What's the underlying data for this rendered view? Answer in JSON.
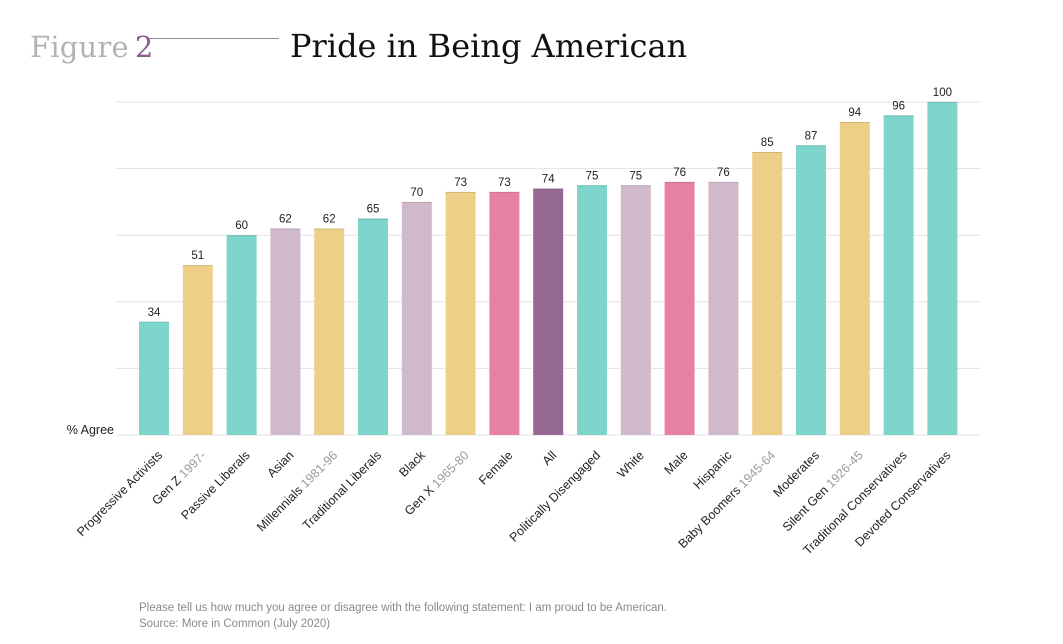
{
  "figure": {
    "label": "Figure",
    "number": "2"
  },
  "title": "Pride in Being American",
  "footnote": {
    "question": "Please tell us how much you agree or disagree with the following statement: I am proud to be American.",
    "source": "Source: More in Common (July 2020)"
  },
  "colors": {
    "teal": "#7dd5cb",
    "gold": "#edcf87",
    "mauve": "#d1b9cc",
    "pink": "#e681a5",
    "purple": "#966994",
    "grid": "#e3e3e3",
    "subtle_text": "#9b9b9b"
  },
  "chart_data": {
    "type": "bar",
    "title": "Pride in Being American",
    "ylabel": "% Agree",
    "xlabel": "",
    "ylim": [
      0,
      100
    ],
    "grid": true,
    "categories": [
      {
        "label": "Progressive Activists",
        "sub": "",
        "value": 34,
        "color": "teal"
      },
      {
        "label": "Gen Z",
        "sub": "1997-",
        "value": 51,
        "color": "gold"
      },
      {
        "label": "Passive Liberals",
        "sub": "",
        "value": 60,
        "color": "teal"
      },
      {
        "label": "Asian",
        "sub": "",
        "value": 62,
        "color": "mauve"
      },
      {
        "label": "Millennials",
        "sub": "1981-96",
        "value": 62,
        "color": "gold"
      },
      {
        "label": "Traditional Liberals",
        "sub": "",
        "value": 65,
        "color": "teal"
      },
      {
        "label": "Black",
        "sub": "",
        "value": 70,
        "color": "mauve"
      },
      {
        "label": "Gen X",
        "sub": "1965-80",
        "value": 73,
        "color": "gold"
      },
      {
        "label": "Female",
        "sub": "",
        "value": 73,
        "color": "pink"
      },
      {
        "label": "All",
        "sub": "",
        "value": 74,
        "color": "purple"
      },
      {
        "label": "Politically Disengaged",
        "sub": "",
        "value": 75,
        "color": "teal"
      },
      {
        "label": "White",
        "sub": "",
        "value": 75,
        "color": "mauve"
      },
      {
        "label": "Male",
        "sub": "",
        "value": 76,
        "color": "pink"
      },
      {
        "label": "Hispanic",
        "sub": "",
        "value": 76,
        "color": "mauve"
      },
      {
        "label": "Baby Boomers",
        "sub": "1945-64",
        "value": 85,
        "color": "gold"
      },
      {
        "label": "Moderates",
        "sub": "",
        "value": 87,
        "color": "teal"
      },
      {
        "label": "Silent Gen",
        "sub": "1926-45",
        "value": 94,
        "color": "gold"
      },
      {
        "label": "Traditional Conservatives",
        "sub": "",
        "value": 96,
        "color": "teal"
      },
      {
        "label": "Devoted Conservatives",
        "sub": "",
        "value": 100,
        "color": "teal"
      }
    ]
  }
}
